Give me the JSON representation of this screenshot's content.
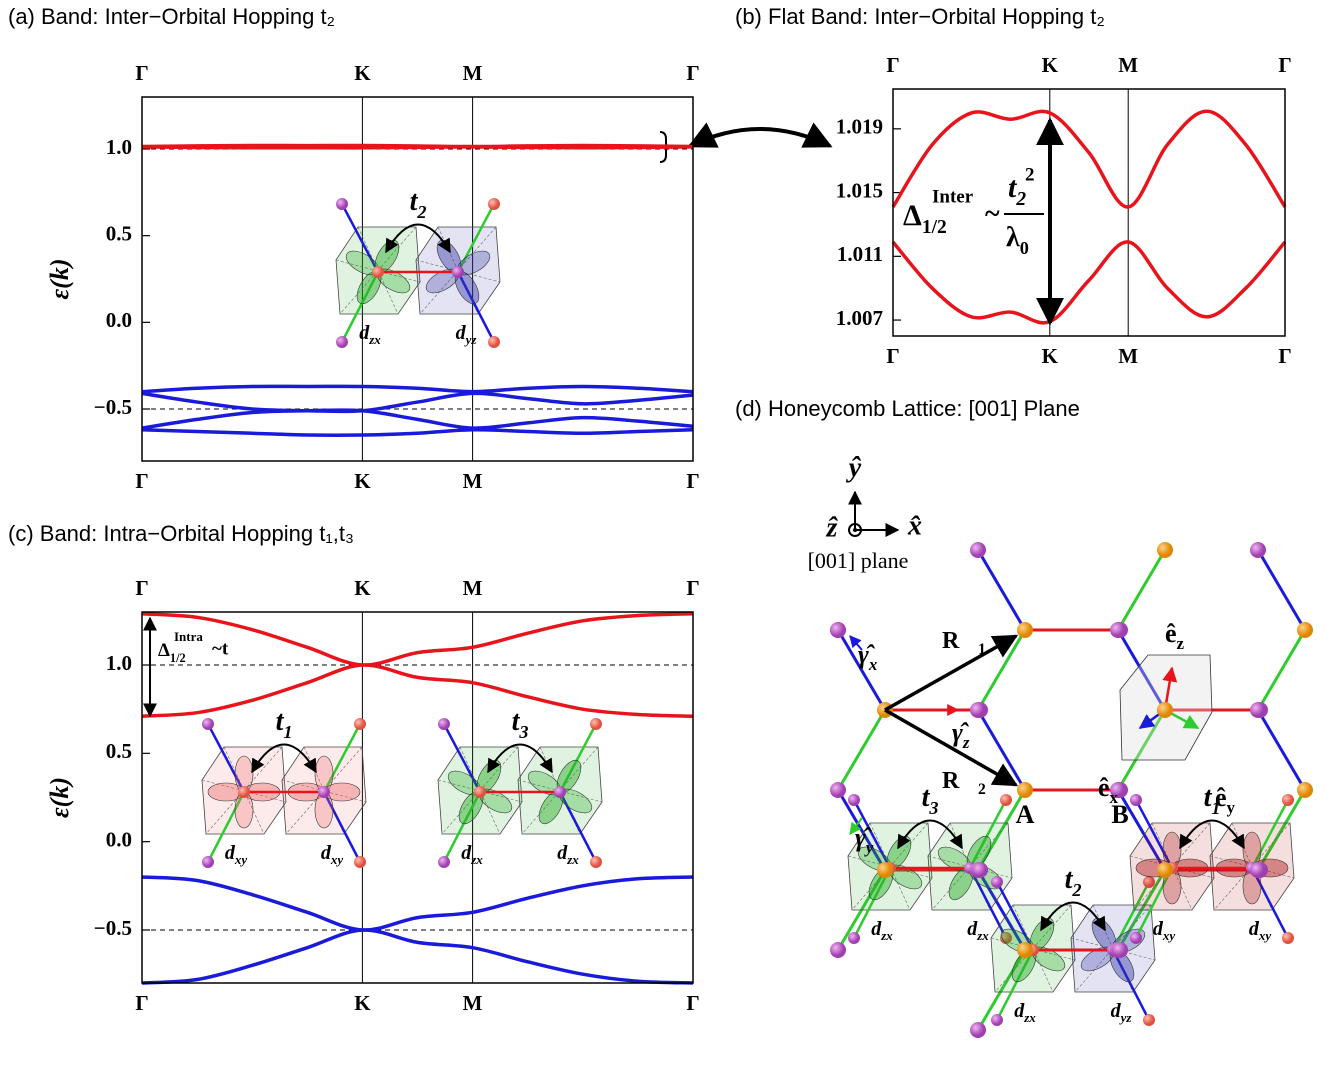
{
  "chart_data": [
    {
      "type": "line",
      "title": "(a) Band: Inter−Orbital Hopping t₂",
      "ylabel": "ε(k)",
      "x": [
        0,
        0.25,
        0.5,
        0.75,
        1,
        1.25,
        1.5,
        1.75,
        2,
        2.25,
        2.5
      ],
      "xlim": [
        0,
        2.5
      ],
      "xticks": [
        {
          "value": 0,
          "label": "Γ"
        },
        {
          "value": 1,
          "label": "K"
        },
        {
          "value": 1.5,
          "label": "M"
        },
        {
          "value": 2.5,
          "label": "Γ"
        }
      ],
      "ylim": [
        -0.8,
        1.3
      ],
      "yticks": [
        {
          "value": 1,
          "label": "1.0"
        },
        0.5,
        {
          "value": 0,
          "label": "0.0"
        },
        {
          "value": -0.5,
          "label": "−0.5"
        }
      ],
      "reference_lines": [
        1,
        -0.5
      ],
      "series": [
        {
          "color": "#e8141c",
          "values": [
            1.0141,
            1.018,
            1.02,
            1.0196,
            1.02,
            1.0175,
            1.0141,
            1.018,
            1.0201,
            1.018,
            1.0141
          ]
        },
        {
          "color": "#e8141c",
          "values": [
            1.0119,
            1.009,
            1.0072,
            1.0075,
            1.0069,
            1.0095,
            1.0119,
            1.009,
            1.0072,
            1.009,
            1.0119
          ]
        },
        {
          "color": "#1a1adb",
          "values": [
            -0.4,
            -0.38,
            -0.37,
            -0.37,
            -0.37,
            -0.38,
            -0.4,
            -0.38,
            -0.37,
            -0.38,
            -0.4
          ]
        },
        {
          "color": "#1a1adb",
          "values": [
            -0.41,
            -0.46,
            -0.5,
            -0.51,
            -0.51,
            -0.46,
            -0.41,
            -0.44,
            -0.47,
            -0.45,
            -0.42
          ]
        },
        {
          "color": "#1a1adb",
          "values": [
            -0.61,
            -0.56,
            -0.52,
            -0.51,
            -0.51,
            -0.56,
            -0.61,
            -0.58,
            -0.55,
            -0.57,
            -0.6
          ]
        },
        {
          "color": "#1a1adb",
          "values": [
            -0.62,
            -0.63,
            -0.64,
            -0.65,
            -0.65,
            -0.64,
            -0.62,
            -0.63,
            -0.64,
            -0.63,
            -0.62
          ]
        }
      ],
      "insets": [
        {
          "hop": {
            "symbol": "t",
            "sub": "2"
          },
          "left": {
            "symbol": "d",
            "sub": "zx",
            "color": "#22aa22"
          },
          "right": {
            "symbol": "d",
            "sub": "yz",
            "color": "#3a3aa8"
          }
        }
      ]
    },
    {
      "type": "line",
      "title": "(b) Flat Band: Inter−Orbital Hopping t₂",
      "x": [
        0,
        0.25,
        0.5,
        0.75,
        1,
        1.25,
        1.5,
        1.75,
        2,
        2.25,
        2.5
      ],
      "xlim": [
        0,
        2.5
      ],
      "xticks": [
        {
          "value": 0,
          "label": "Γ"
        },
        {
          "value": 1,
          "label": "K"
        },
        {
          "value": 1.5,
          "label": "M"
        },
        {
          "value": 2.5,
          "label": "Γ"
        }
      ],
      "ylim": [
        1.006,
        1.0215
      ],
      "yticks": [
        1.019,
        1.015,
        1.011,
        1.007
      ],
      "series": [
        {
          "color": "#e8141c",
          "values": [
            1.0141,
            1.018,
            1.02,
            1.0196,
            1.02,
            1.0175,
            1.0141,
            1.018,
            1.0201,
            1.018,
            1.0141
          ]
        },
        {
          "color": "#e8141c",
          "values": [
            1.0119,
            1.009,
            1.0072,
            1.0075,
            1.0069,
            1.0095,
            1.0119,
            1.009,
            1.0072,
            1.009,
            1.0119
          ]
        }
      ],
      "annotation": {
        "delta": "Δ",
        "sub": "1/2",
        "sup": "Inter",
        "tilde": "~",
        "num": "t",
        "num_sup": "2",
        "num_sub": "2",
        "den": "λ",
        "den_sub": "0"
      }
    },
    {
      "type": "line",
      "title": "(c) Band: Intra−Orbital Hopping t₁,t₃",
      "ylabel": "ε(k)",
      "x": [
        0,
        0.25,
        0.5,
        0.75,
        1,
        1.25,
        1.5,
        1.75,
        2,
        2.25,
        2.5
      ],
      "xlim": [
        0,
        2.5
      ],
      "xticks": [
        {
          "value": 0,
          "label": "Γ"
        },
        {
          "value": 1,
          "label": "K"
        },
        {
          "value": 1.5,
          "label": "M"
        },
        {
          "value": 2.5,
          "label": "Γ"
        }
      ],
      "ylim": [
        -0.8,
        1.3
      ],
      "yticks": [
        {
          "value": 1,
          "label": "1.0"
        },
        0.5,
        {
          "value": 0,
          "label": "0.0"
        },
        {
          "value": -0.5,
          "label": "−0.5"
        }
      ],
      "reference_lines": [
        1,
        -0.5
      ],
      "series": [
        {
          "color": "#e8141c",
          "values": [
            1.29,
            1.27,
            1.2,
            1.1,
            1.0,
            1.07,
            1.1,
            1.18,
            1.25,
            1.28,
            1.29
          ]
        },
        {
          "color": "#e8141c",
          "values": [
            0.71,
            0.73,
            0.8,
            0.9,
            1.0,
            0.93,
            0.9,
            0.82,
            0.75,
            0.72,
            0.71
          ]
        },
        {
          "color": "#1a1adb",
          "values": [
            -0.2,
            -0.22,
            -0.3,
            -0.4,
            -0.5,
            -0.43,
            -0.4,
            -0.32,
            -0.25,
            -0.21,
            -0.2
          ]
        },
        {
          "color": "#1a1adb",
          "values": [
            -0.8,
            -0.78,
            -0.7,
            -0.6,
            -0.5,
            -0.57,
            -0.6,
            -0.68,
            -0.75,
            -0.79,
            -0.8
          ]
        }
      ],
      "annotation": {
        "delta": "Δ",
        "sub": "1/2",
        "sup": "Intra",
        "tilde": "~t"
      },
      "insets": [
        {
          "hop": {
            "symbol": "t",
            "sub": "1"
          },
          "left": {
            "symbol": "d",
            "sub": "xy",
            "color": "#f07070"
          },
          "right": {
            "symbol": "d",
            "sub": "xy",
            "color": "#f07070"
          }
        },
        {
          "hop": {
            "symbol": "t",
            "sub": "3"
          },
          "left": {
            "symbol": "d",
            "sub": "zx",
            "color": "#22aa22"
          },
          "right": {
            "symbol": "d",
            "sub": "zx",
            "color": "#22aa22"
          }
        }
      ]
    }
  ],
  "diagram": {
    "title": "(d) Honeycomb Lattice: [001] Plane",
    "axes": {
      "x": "x̂",
      "y": "ŷ",
      "z": "ẑ",
      "plane": "[001] plane"
    },
    "vectors": [
      {
        "symbol": "R⃗",
        "sub": "1"
      },
      {
        "symbol": "R⃗",
        "sub": "2"
      }
    ],
    "bond_directions": [
      {
        "symbol": "γ̂",
        "sub": "x",
        "color": "#1a1adb"
      },
      {
        "symbol": "γ̂",
        "sub": "z",
        "color": "#e8141c"
      },
      {
        "symbol": "γ̂",
        "sub": "y",
        "color": "#2ecc2e"
      }
    ],
    "sublattices": [
      {
        "label": "A",
        "color": "#f39200"
      },
      {
        "label": "B",
        "color": "#8e2a8e"
      }
    ],
    "local_axes": [
      {
        "symbol": "ê",
        "sub": "z",
        "color": "#e8141c"
      },
      {
        "symbol": "ê",
        "sub": "x",
        "color": "#1a1adb"
      },
      {
        "symbol": "ê",
        "sub": "y",
        "color": "#2ecc2e"
      }
    ],
    "orbital_pairs": [
      {
        "hop": {
          "symbol": "t",
          "sub": "3"
        },
        "left": {
          "symbol": "d",
          "sub": "zx",
          "color": "#22aa22"
        },
        "right": {
          "symbol": "d",
          "sub": "zx",
          "color": "#22aa22"
        }
      },
      {
        "hop": {
          "symbol": "t",
          "sub": "2"
        },
        "left": {
          "symbol": "d",
          "sub": "zx",
          "color": "#22aa22"
        },
        "right": {
          "symbol": "d",
          "sub": "yz",
          "color": "#3a3aa8"
        }
      },
      {
        "hop": {
          "symbol": "t",
          "sub": "1"
        },
        "left": {
          "symbol": "d",
          "sub": "xy",
          "color": "#b01818"
        },
        "right": {
          "symbol": "d",
          "sub": "xy",
          "color": "#b01818"
        }
      }
    ]
  }
}
